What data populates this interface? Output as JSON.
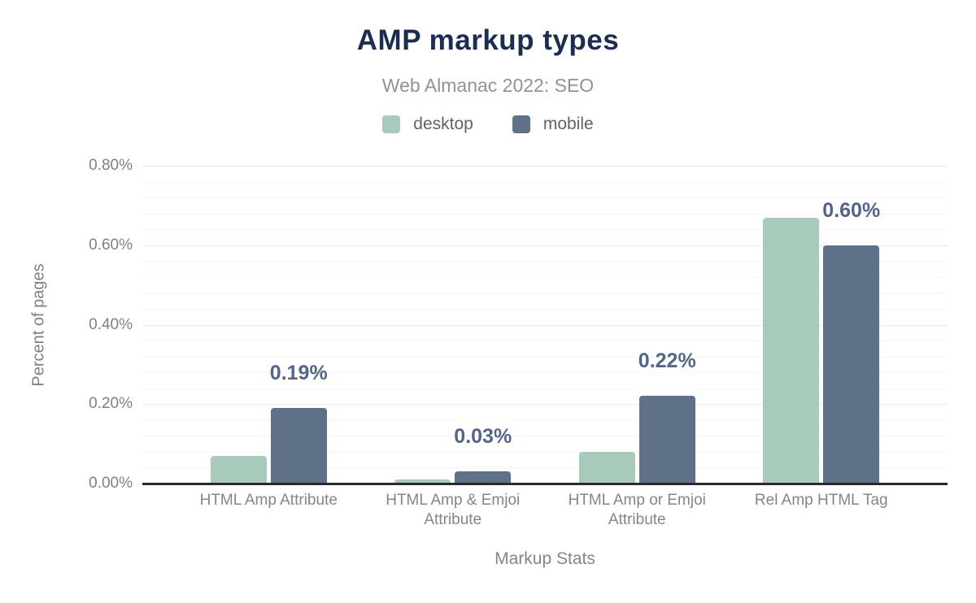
{
  "chart_data": {
    "type": "bar",
    "title": "AMP markup types",
    "subtitle": "Web Almanac 2022: SEO",
    "xlabel": "Markup Stats",
    "ylabel": "Percent of pages",
    "categories": [
      "HTML Amp Attribute",
      "HTML Amp & Emjoi Attribute",
      "HTML Amp or Emjoi Attribute",
      "Rel Amp HTML Tag"
    ],
    "series": [
      {
        "name": "desktop",
        "color": "#a8cabb",
        "values": [
          0.07,
          0.01,
          0.08,
          0.67
        ]
      },
      {
        "name": "mobile",
        "color": "#5f7089",
        "values": [
          0.19,
          0.03,
          0.22,
          0.6
        ]
      }
    ],
    "data_labels": {
      "on_series": "mobile",
      "labels": [
        "0.19%",
        "0.03%",
        "0.22%",
        "0.60%"
      ]
    },
    "y_ticks": [
      {
        "value": 0.0,
        "label": "0.00%"
      },
      {
        "value": 0.2,
        "label": "0.20%"
      },
      {
        "value": 0.4,
        "label": "0.40%"
      },
      {
        "value": 0.6,
        "label": "0.60%"
      },
      {
        "value": 0.8,
        "label": "0.80%"
      }
    ],
    "ylim": [
      0,
      0.8
    ],
    "minor_grid_step": 0.04,
    "major_grid_step": 0.2,
    "grid": true,
    "legend_position": "top",
    "colors": {
      "title": "#1b2e52",
      "subtitle": "#8f9298",
      "axis_text": "#7d8187",
      "data_label": "#52648c",
      "axis_line": "#2a2a2a",
      "desktop": "#a8cabb",
      "mobile": "#5f7089"
    }
  }
}
